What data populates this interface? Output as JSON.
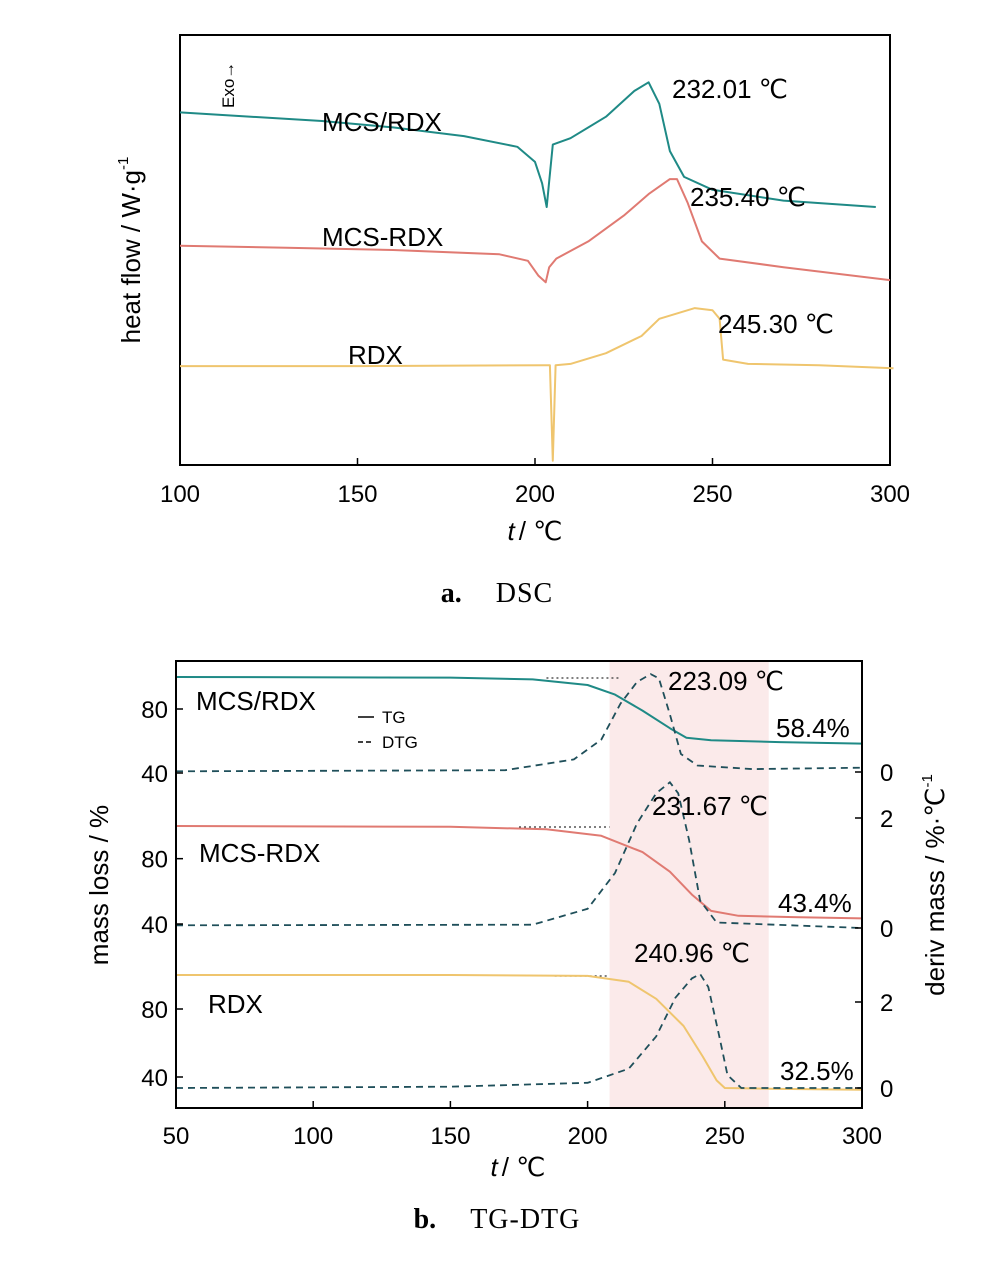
{
  "colors": {
    "teal": "#1f8a86",
    "red": "#e07a72",
    "yellow": "#efc56e",
    "dtg": "#1f4f5a",
    "shade": "#fbeaea"
  },
  "chart_data": [
    {
      "type": "line",
      "panel": {
        "letter": "a.",
        "caption": "DSC"
      },
      "xlabel_italic": "t",
      "xlabel_rest": "/ ℃",
      "ylabel": "heat flow / W·g",
      "ylabel_sup": "-1",
      "exo_label": "Exo→",
      "xlim": [
        100,
        300
      ],
      "xticks": [
        100,
        150,
        200,
        250,
        300
      ],
      "series": [
        {
          "name": "MCS/RDX",
          "color": "teal",
          "peak_label": "232.01 ℃",
          "points": [
            [
              100,
              0.82
            ],
            [
              120,
              0.81
            ],
            [
              140,
              0.8
            ],
            [
              160,
              0.785
            ],
            [
              180,
              0.765
            ],
            [
              195,
              0.74
            ],
            [
              200,
              0.705
            ],
            [
              202,
              0.655
            ],
            [
              203.3,
              0.6
            ],
            [
              204,
              0.66
            ],
            [
              205,
              0.745
            ],
            [
              210,
              0.76
            ],
            [
              220,
              0.81
            ],
            [
              228,
              0.87
            ],
            [
              232,
              0.89
            ],
            [
              235,
              0.84
            ],
            [
              238,
              0.73
            ],
            [
              242,
              0.67
            ],
            [
              250,
              0.64
            ],
            [
              270,
              0.615
            ],
            [
              296,
              0.6
            ]
          ]
        },
        {
          "name": "MCS-RDX",
          "color": "red",
          "peak_label": "235.40 ℃",
          "points": [
            [
              100,
              0.51
            ],
            [
              130,
              0.505
            ],
            [
              160,
              0.5
            ],
            [
              190,
              0.49
            ],
            [
              198,
              0.475
            ],
            [
              201,
              0.44
            ],
            [
              203,
              0.425
            ],
            [
              204,
              0.46
            ],
            [
              206,
              0.48
            ],
            [
              215,
              0.52
            ],
            [
              225,
              0.58
            ],
            [
              232,
              0.63
            ],
            [
              238,
              0.665
            ],
            [
              240,
              0.665
            ],
            [
              243,
              0.61
            ],
            [
              247,
              0.52
            ],
            [
              252,
              0.48
            ],
            [
              270,
              0.46
            ],
            [
              300,
              0.43
            ]
          ]
        },
        {
          "name": "RDX",
          "color": "yellow",
          "peak_label": "245.30 ℃",
          "points": [
            [
              100,
              0.23
            ],
            [
              150,
              0.23
            ],
            [
              203,
              0.232
            ],
            [
              204.2,
              0.232
            ],
            [
              205,
              0.01
            ],
            [
              205.8,
              0.232
            ],
            [
              210,
              0.235
            ],
            [
              220,
              0.26
            ],
            [
              230,
              0.3
            ],
            [
              235,
              0.34
            ],
            [
              245,
              0.365
            ],
            [
              250,
              0.36
            ],
            [
              252,
              0.34
            ],
            [
              253,
              0.245
            ],
            [
              260,
              0.235
            ],
            [
              280,
              0.232
            ],
            [
              301,
              0.225
            ]
          ]
        }
      ]
    },
    {
      "type": "line",
      "panel": {
        "letter": "b.",
        "caption": "TG-DTG"
      },
      "xlabel_italic": "t",
      "xlabel_rest": "/ ℃",
      "ylabel_left": "mass loss / %",
      "ylabel_right": "deriv mass / %·℃",
      "ylabel_right_sup": "-1",
      "xlim": [
        50,
        300
      ],
      "xticks": [
        50,
        100,
        150,
        200,
        250,
        300
      ],
      "legend": {
        "solid": "TG",
        "dashed": "DTG"
      },
      "shaded_x_range": [
        208,
        266
      ],
      "left_tick_labels": [
        "80",
        "40"
      ],
      "right_tick_labels": [
        "0",
        "2"
      ],
      "subplots": [
        {
          "name": "MCS/RDX",
          "color": "teal",
          "peak_label": "223.09 ℃",
          "residue_label": "58.4%",
          "peak_x": 223.09,
          "residual": 58.4,
          "tg": [
            [
              50,
              100
            ],
            [
              150,
              99.6
            ],
            [
              180,
              98.5
            ],
            [
              200,
              95
            ],
            [
              210,
              89
            ],
            [
              220,
              79
            ],
            [
              230,
              68
            ],
            [
              236,
              62
            ],
            [
              245,
              60.5
            ],
            [
              270,
              59.3
            ],
            [
              300,
              58.4
            ]
          ],
          "dtg": [
            [
              50,
              0.02
            ],
            [
              170,
              0.05
            ],
            [
              195,
              0.35
            ],
            [
              205,
              0.9
            ],
            [
              212,
              1.9
            ],
            [
              218,
              2.5
            ],
            [
              223,
              2.72
            ],
            [
              226,
              2.6
            ],
            [
              230,
              1.6
            ],
            [
              234,
              0.5
            ],
            [
              240,
              0.18
            ],
            [
              260,
              0.08
            ],
            [
              300,
              0.12
            ]
          ]
        },
        {
          "name": "MCS-RDX",
          "color": "red",
          "peak_label": "231.67 ℃",
          "residue_label": "43.4%",
          "peak_x": 231.67,
          "residual": 43.4,
          "tg": [
            [
              50,
              100
            ],
            [
              150,
              99.5
            ],
            [
              185,
              98
            ],
            [
              205,
              94
            ],
            [
              220,
              84
            ],
            [
              230,
              72
            ],
            [
              238,
              58
            ],
            [
              245,
              48
            ],
            [
              255,
              45
            ],
            [
              275,
              44.2
            ],
            [
              300,
              43.4
            ]
          ],
          "dtg": [
            [
              50,
              0.05
            ],
            [
              180,
              0.06
            ],
            [
              200,
              0.35
            ],
            [
              210,
              1.0
            ],
            [
              218,
              1.9
            ],
            [
              225,
              2.45
            ],
            [
              230,
              2.65
            ],
            [
              233,
              2.45
            ],
            [
              237,
              1.6
            ],
            [
              241,
              0.5
            ],
            [
              247,
              0.1
            ],
            [
              300,
              0.0
            ]
          ]
        },
        {
          "name": "RDX",
          "color": "yellow",
          "peak_label": "240.96 ℃",
          "residue_label": "32.5%",
          "peak_x": 240.96,
          "residual": 32.5,
          "tg": [
            [
              50,
              100
            ],
            [
              150,
              100
            ],
            [
              200,
              99.5
            ],
            [
              215,
              96
            ],
            [
              225,
              86
            ],
            [
              235,
              70
            ],
            [
              242,
              52
            ],
            [
              247,
              38
            ],
            [
              250,
              33.5
            ],
            [
              270,
              33
            ],
            [
              300,
              32.5
            ]
          ],
          "dtg": [
            [
              50,
              0.0
            ],
            [
              150,
              0.03
            ],
            [
              200,
              0.12
            ],
            [
              215,
              0.45
            ],
            [
              225,
              1.2
            ],
            [
              232,
              2.1
            ],
            [
              238,
              2.55
            ],
            [
              241,
              2.65
            ],
            [
              244,
              2.35
            ],
            [
              248,
              1.2
            ],
            [
              251,
              0.3
            ],
            [
              256,
              0.0
            ],
            [
              300,
              0.0
            ]
          ]
        }
      ]
    }
  ]
}
